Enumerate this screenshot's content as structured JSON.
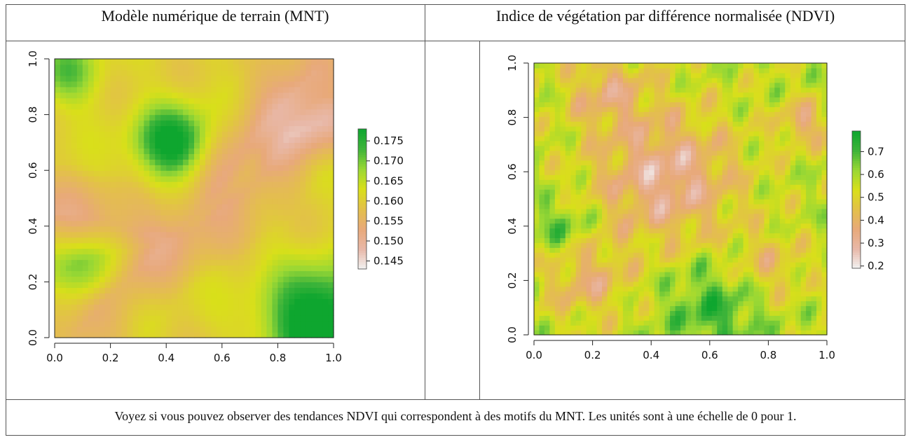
{
  "panels": [
    {
      "title": "Modèle numérique de terrain (MNT)"
    },
    {
      "title": "Indice de végétation par différence normalisée (NDVI)"
    }
  ],
  "caption": "Voyez si vous pouvez observer des tendances NDVI qui correspondent à des motifs du MNT. Les unités sont à une échelle de 0 pour 1.",
  "colors": {
    "ramp": [
      "#f2f2f2",
      "#e8b8a8",
      "#e8a97a",
      "#e3c04a",
      "#d9df1a",
      "#9ad834",
      "#3eb43a",
      "#0ea62f"
    ]
  },
  "chart_data": [
    {
      "type": "heatmap",
      "title": "Modèle numérique de terrain (MNT)",
      "xlabel": "",
      "ylabel": "",
      "xlim": [
        0,
        1
      ],
      "ylim": [
        0,
        1
      ],
      "xticks": [
        "0.0",
        "0.2",
        "0.4",
        "0.6",
        "0.8",
        "1.0"
      ],
      "yticks": [
        "0.0",
        "0.2",
        "0.4",
        "0.6",
        "0.8",
        "1.0"
      ],
      "legend": {
        "placement": "right",
        "range": [
          0.143,
          0.178
        ],
        "ticks": [
          "0.145",
          "0.150",
          "0.155",
          "0.160",
          "0.165",
          "0.170",
          "0.175"
        ],
        "tick_values": [
          0.145,
          0.15,
          0.155,
          0.16,
          0.165,
          0.17,
          0.175
        ]
      }
    },
    {
      "type": "heatmap",
      "title": "Indice de végétation par différence normalisée (NDVI)",
      "xlabel": "",
      "ylabel": "",
      "xlim": [
        0,
        1
      ],
      "ylim": [
        0,
        1
      ],
      "xticks": [
        "0.0",
        "0.2",
        "0.4",
        "0.6",
        "0.8",
        "1.0"
      ],
      "yticks": [
        "0.0",
        "0.2",
        "0.4",
        "0.6",
        "0.8",
        "1.0"
      ],
      "legend": {
        "placement": "right",
        "range": [
          0.19,
          0.79
        ],
        "ticks": [
          "0.2",
          "0.3",
          "0.4",
          "0.5",
          "0.6",
          "0.7"
        ],
        "tick_values": [
          0.2,
          0.3,
          0.4,
          0.5,
          0.6,
          0.7
        ]
      }
    }
  ]
}
